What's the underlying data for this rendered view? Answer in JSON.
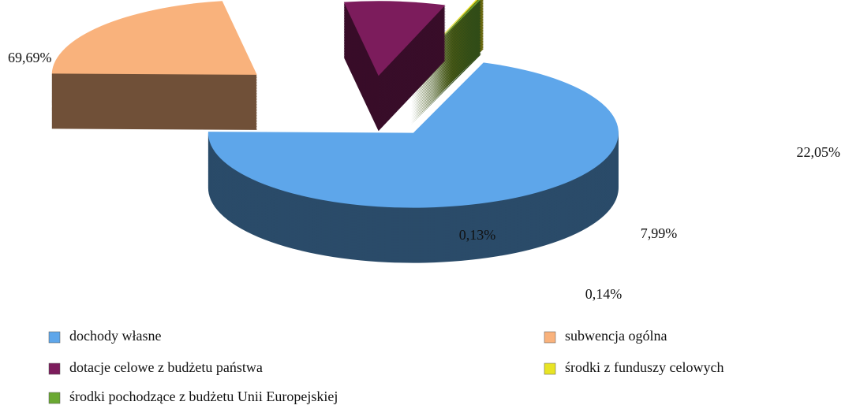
{
  "chart_data": {
    "type": "pie",
    "categories": [
      "dochody własne",
      "subwencja ogólna",
      "dotacje celowe z budżetu państwa",
      "środki z funduszy celowych",
      "środki pochodzące z budżetu Unii Europejskiej"
    ],
    "values": [
      69.69,
      22.05,
      7.99,
      0.14,
      0.13
    ],
    "value_labels": [
      "69,69%",
      "22,05%",
      "7,99%",
      "0,14%",
      "0,13%"
    ],
    "colors": [
      "#5ea6ea",
      "#f9b27c",
      "#7c1c5c",
      "#e8e424",
      "#6aa832"
    ]
  }
}
